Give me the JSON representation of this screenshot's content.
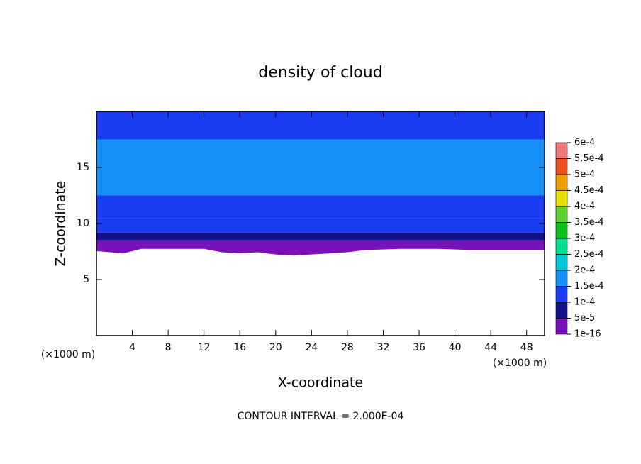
{
  "chart_data": {
    "type": "contour",
    "title": "density of cloud",
    "xlabel": "X-coordinate",
    "ylabel": "Z-coordinate",
    "x_unit": "(×1000 m)",
    "y_unit": "(×1000 m)",
    "footer": "CONTOUR INTERVAL = 2.000E-04",
    "xlim": [
      0,
      50
    ],
    "ylim": [
      0,
      20
    ],
    "xticks": [
      4,
      8,
      12,
      16,
      20,
      24,
      28,
      32,
      36,
      40,
      44,
      48
    ],
    "yticks": [
      5,
      10,
      15
    ],
    "field": {
      "z_tops": [
        8.5,
        9.2,
        10.5,
        12.5,
        17.5,
        20
      ],
      "values": [
        2e-05,
        7e-05,
        0.00011,
        0.00013,
        0.00016,
        0.000135
      ]
    },
    "cloud_base": {
      "x": [
        0,
        3,
        5,
        8,
        12,
        14,
        16,
        18,
        20,
        22,
        24,
        26,
        28,
        30,
        34,
        38,
        42,
        46,
        50
      ],
      "z": [
        7.6,
        7.4,
        7.8,
        7.8,
        7.8,
        7.5,
        7.4,
        7.5,
        7.3,
        7.2,
        7.3,
        7.4,
        7.5,
        7.7,
        7.8,
        7.8,
        7.7,
        7.7,
        7.7
      ]
    },
    "colorbar": {
      "ticks": [
        {
          "value": 1e-16,
          "label": "1e-16"
        },
        {
          "value": 5e-05,
          "label": "5e-5"
        },
        {
          "value": 0.0001,
          "label": "1e-4"
        },
        {
          "value": 0.00015,
          "label": "1.5e-4"
        },
        {
          "value": 0.0002,
          "label": "2e-4"
        },
        {
          "value": 0.00025,
          "label": "2.5e-4"
        },
        {
          "value": 0.0003,
          "label": "3e-4"
        },
        {
          "value": 0.00035,
          "label": "3.5e-4"
        },
        {
          "value": 0.0004,
          "label": "4e-4"
        },
        {
          "value": 0.00045,
          "label": "4.5e-4"
        },
        {
          "value": 0.0005,
          "label": "5e-4"
        },
        {
          "value": 0.00055,
          "label": "5.5e-4"
        },
        {
          "value": 0.0006,
          "label": "6e-4"
        }
      ],
      "colors": [
        "#7a10b8",
        "#12128c",
        "#1a3cf0",
        "#1892f8",
        "#00c8d8",
        "#00e090",
        "#10c020",
        "#60d030",
        "#e8e000",
        "#f0a000",
        "#f05020",
        "#f07878"
      ]
    }
  }
}
